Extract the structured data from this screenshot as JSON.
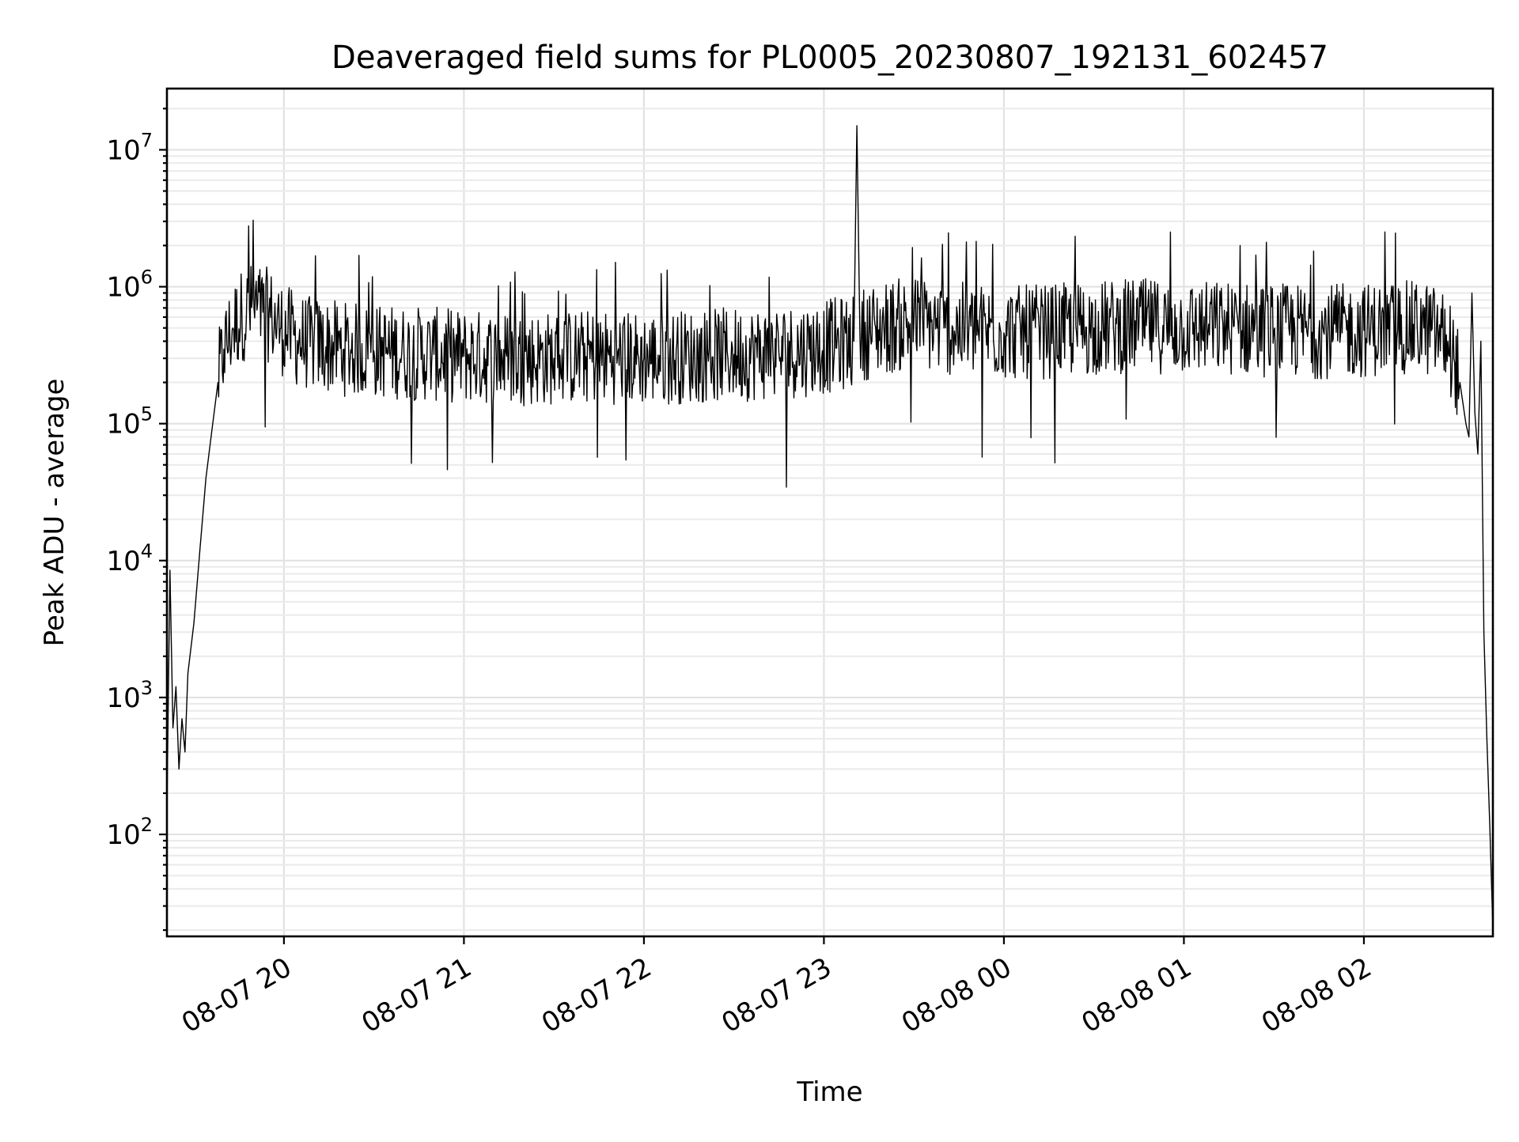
{
  "chart_data": {
    "type": "line",
    "title": "Deaveraged field sums for PL0005_20230807_192131_602457",
    "xlabel": "Time",
    "ylabel": "Peak ADU - average",
    "yscale": "log",
    "grid": "on (major and minor)",
    "line_color": "#000000",
    "xlim": [
      "2023-08-07 19:21",
      "2023-08-08 02:43"
    ],
    "ylim": [
      18,
      28000000
    ],
    "x_ticks": [
      "08-07 20",
      "08-07 21",
      "08-07 22",
      "08-07 23",
      "08-08 00",
      "08-08 01",
      "08-08 02"
    ],
    "x_tick_times": [
      "2023-08-07 20:00",
      "2023-08-07 21:00",
      "2023-08-07 22:00",
      "2023-08-07 23:00",
      "2023-08-08 00:00",
      "2023-08-08 01:00",
      "2023-08-08 02:00"
    ],
    "y_ticks": [
      {
        "value": 100,
        "base": "10",
        "exp": "2"
      },
      {
        "value": 1000,
        "base": "10",
        "exp": "3"
      },
      {
        "value": 10000,
        "base": "10",
        "exp": "4"
      },
      {
        "value": 100000,
        "base": "10",
        "exp": "5"
      },
      {
        "value": 1000000,
        "base": "10",
        "exp": "6"
      },
      {
        "value": 10000000,
        "base": "10",
        "exp": "7"
      }
    ],
    "series": [
      {
        "x": [
          "2023-08-07 19:21",
          "2023-08-07 19:22",
          "2023-08-07 19:23",
          "2023-08-07 19:24",
          "2023-08-07 19:25",
          "2023-08-07 19:26",
          "2023-08-07 19:27",
          "2023-08-07 19:28",
          "2023-08-07 19:30",
          "2023-08-07 19:32",
          "2023-08-07 19:34",
          "2023-08-07 19:36",
          "2023-08-07 19:38",
          "2023-08-07 19:40",
          "2023-08-07 19:43",
          "2023-08-07 19:46",
          "2023-08-07 19:50",
          "2023-08-07 19:53",
          "2023-08-07 19:56",
          "2023-08-07 19:59",
          "2023-08-07 20:02",
          "2023-08-07 20:05",
          "2023-08-07 20:10",
          "2023-08-07 20:20",
          "2023-08-07 20:30",
          "2023-08-07 20:40",
          "2023-08-07 20:50",
          "2023-08-07 21:00",
          "2023-08-07 21:15",
          "2023-08-07 21:30",
          "2023-08-07 21:45",
          "2023-08-07 22:00",
          "2023-08-07 22:15",
          "2023-08-07 22:30",
          "2023-08-07 22:45",
          "2023-08-07 22:55",
          "2023-08-07 23:05",
          "2023-08-07 23:10",
          "2023-08-07 23:11",
          "2023-08-07 23:12",
          "2023-08-07 23:20",
          "2023-08-07 23:30",
          "2023-08-07 23:40",
          "2023-08-07 23:50",
          "2023-08-08 00:00",
          "2023-08-08 00:15",
          "2023-08-08 00:30",
          "2023-08-08 00:45",
          "2023-08-08 01:00",
          "2023-08-08 01:15",
          "2023-08-08 01:30",
          "2023-08-08 01:45",
          "2023-08-08 02:00",
          "2023-08-08 02:10",
          "2023-08-08 02:20",
          "2023-08-08 02:25",
          "2023-08-08 02:28",
          "2023-08-08 02:30",
          "2023-08-08 02:32",
          "2023-08-08 02:34",
          "2023-08-08 02:35",
          "2023-08-08 02:36",
          "2023-08-08 02:37",
          "2023-08-08 02:38",
          "2023-08-08 02:39",
          "2023-08-08 02:40",
          "2023-08-08 02:41",
          "2023-08-08 02:42",
          "2023-08-08 02:43"
        ],
        "y": [
          150,
          8500,
          600,
          1200,
          300,
          700,
          400,
          1500,
          3500,
          12000,
          40000,
          90000,
          200000,
          350000,
          500000,
          620000,
          700000,
          650000,
          600000,
          500000,
          450000,
          400000,
          380000,
          350000,
          340000,
          330000,
          320000,
          310000,
          300000,
          300000,
          310000,
          300000,
          310000,
          320000,
          330000,
          350000,
          380000,
          400000,
          15000000,
          450000,
          500000,
          550000,
          500000,
          480000,
          460000,
          470000,
          500000,
          520000,
          500000,
          500000,
          480000,
          470000,
          480000,
          500000,
          500000,
          450000,
          400000,
          300000,
          200000,
          100000,
          80000,
          900000,
          120000,
          60000,
          400000,
          3000,
          500,
          110,
          20
        ],
        "fluctuation_range": [
          30000,
          3200000
        ]
      }
    ]
  }
}
